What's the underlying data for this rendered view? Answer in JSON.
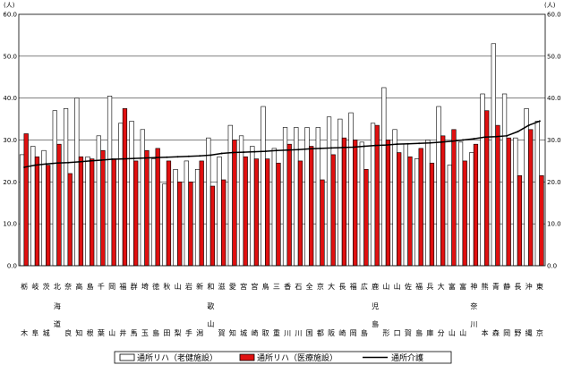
{
  "chart_data": {
    "type": "bar",
    "y_unit_left": "(人)",
    "y_unit_right": "(人)",
    "ylim": [
      0,
      60
    ],
    "yticks": [
      "0.0",
      "10.0",
      "20.0",
      "30.0",
      "40.0",
      "50.0",
      "60.0"
    ],
    "categories": [
      {
        "top": "栃",
        "mid": "",
        "mid2": "",
        "bot": "木"
      },
      {
        "top": "岐",
        "mid": "",
        "mid2": "",
        "bot": "阜"
      },
      {
        "top": "茨",
        "mid": "",
        "mid2": "",
        "bot": "城"
      },
      {
        "top": "北",
        "mid": "海",
        "mid2": "道",
        "bot": ""
      },
      {
        "top": "奈",
        "mid": "",
        "mid2": "",
        "bot": "良"
      },
      {
        "top": "高",
        "mid": "",
        "mid2": "",
        "bot": "知"
      },
      {
        "top": "島",
        "mid": "",
        "mid2": "",
        "bot": "根"
      },
      {
        "top": "千",
        "mid": "",
        "mid2": "",
        "bot": "葉"
      },
      {
        "top": "岡",
        "mid": "",
        "mid2": "",
        "bot": "山"
      },
      {
        "top": "福",
        "mid": "",
        "mid2": "",
        "bot": "井"
      },
      {
        "top": "群",
        "mid": "",
        "mid2": "",
        "bot": "馬"
      },
      {
        "top": "埼",
        "mid": "",
        "mid2": "",
        "bot": "玉"
      },
      {
        "top": "徳",
        "mid": "",
        "mid2": "",
        "bot": "島"
      },
      {
        "top": "秋",
        "mid": "",
        "mid2": "",
        "bot": "田"
      },
      {
        "top": "山",
        "mid": "",
        "mid2": "",
        "bot": "梨"
      },
      {
        "top": "岩",
        "mid": "",
        "mid2": "",
        "bot": "手"
      },
      {
        "top": "新",
        "mid": "",
        "mid2": "",
        "bot": "潟"
      },
      {
        "top": "和",
        "mid": "歌",
        "mid2": "山",
        "bot": ""
      },
      {
        "top": "滋",
        "mid": "",
        "mid2": "",
        "bot": "賀"
      },
      {
        "top": "愛",
        "mid": "",
        "mid2": "",
        "bot": "知"
      },
      {
        "top": "宮",
        "mid": "",
        "mid2": "",
        "bot": "城"
      },
      {
        "top": "宮",
        "mid": "",
        "mid2": "",
        "bot": "崎"
      },
      {
        "top": "鳥",
        "mid": "",
        "mid2": "",
        "bot": "取"
      },
      {
        "top": "三",
        "mid": "",
        "mid2": "",
        "bot": "重"
      },
      {
        "top": "香",
        "mid": "",
        "mid2": "",
        "bot": "川"
      },
      {
        "top": "石",
        "mid": "",
        "mid2": "",
        "bot": "川"
      },
      {
        "top": "全",
        "mid": "",
        "mid2": "",
        "bot": "国"
      },
      {
        "top": "京",
        "mid": "",
        "mid2": "",
        "bot": "都"
      },
      {
        "top": "大",
        "mid": "",
        "mid2": "",
        "bot": "阪"
      },
      {
        "top": "長",
        "mid": "",
        "mid2": "",
        "bot": "崎"
      },
      {
        "top": "福",
        "mid": "",
        "mid2": "",
        "bot": "岡"
      },
      {
        "top": "広",
        "mid": "",
        "mid2": "",
        "bot": "島"
      },
      {
        "top": "鹿",
        "mid": "児",
        "mid2": "島",
        "bot": ""
      },
      {
        "top": "山",
        "mid": "",
        "mid2": "",
        "bot": "形"
      },
      {
        "top": "山",
        "mid": "",
        "mid2": "",
        "bot": "口"
      },
      {
        "top": "佐",
        "mid": "",
        "mid2": "",
        "bot": "賀"
      },
      {
        "top": "福",
        "mid": "",
        "mid2": "",
        "bot": "島"
      },
      {
        "top": "兵",
        "mid": "",
        "mid2": "",
        "bot": "庫"
      },
      {
        "top": "大",
        "mid": "",
        "mid2": "",
        "bot": "分"
      },
      {
        "top": "富",
        "mid": "",
        "mid2": "",
        "bot": "山"
      },
      {
        "top": "富",
        "mid": "",
        "mid2": "",
        "bot": "山"
      },
      {
        "top": "神",
        "mid": "奈",
        "mid2": "川",
        "bot": ""
      },
      {
        "top": "熊",
        "mid": "",
        "mid2": "",
        "bot": "本"
      },
      {
        "top": "青",
        "mid": "",
        "mid2": "",
        "bot": "森"
      },
      {
        "top": "静",
        "mid": "",
        "mid2": "",
        "bot": "岡"
      },
      {
        "top": "長",
        "mid": "",
        "mid2": "",
        "bot": "野"
      },
      {
        "top": "沖",
        "mid": "",
        "mid2": "",
        "bot": "縄"
      },
      {
        "top": "東",
        "mid": "",
        "mid2": "",
        "bot": "京"
      }
    ],
    "series": [
      {
        "name": "通所リハ（老健施設）",
        "kind": "bar",
        "color": "#ffffff",
        "values": [
          26.5,
          28.5,
          27.5,
          37.0,
          37.5,
          40.0,
          26.0,
          31.0,
          40.5,
          34.0,
          34.5,
          32.5,
          25.5,
          19.5,
          23.0,
          25.0,
          23.0,
          30.5,
          26.0,
          33.5,
          31.0,
          28.5,
          38.0,
          28.0,
          33.0,
          33.0,
          33.0,
          33.0,
          35.5,
          35.0,
          36.5,
          29.5,
          34.0,
          42.5,
          32.5,
          29.0,
          25.5,
          30.0,
          38.0,
          24.0,
          29.5,
          27.0,
          41.0,
          53.0,
          41.0,
          30.5,
          37.5,
          34.5
        ]
      },
      {
        "name": "通所リハ（医療施設）",
        "kind": "bar",
        "color": "#e01010",
        "values": [
          31.5,
          26.0,
          24.0,
          29.0,
          22.0,
          26.0,
          25.5,
          27.5,
          25.5,
          37.5,
          25.0,
          27.5,
          28.0,
          25.0,
          20.0,
          20.0,
          25.0,
          19.0,
          20.5,
          30.0,
          26.0,
          25.5,
          25.5,
          24.5,
          29.0,
          25.0,
          28.5,
          20.5,
          26.5,
          30.5,
          30.0,
          23.0,
          33.5,
          30.0,
          27.0,
          26.0,
          28.0,
          24.5,
          31.0,
          32.5,
          25.0,
          29.0,
          37.0,
          33.5,
          30.5,
          21.5,
          32.5,
          21.5
        ]
      },
      {
        "name": "通所介護",
        "kind": "line",
        "color": "#000000",
        "values": [
          23.5,
          24.0,
          24.3,
          24.5,
          24.6,
          24.8,
          25.0,
          25.2,
          25.4,
          25.5,
          25.6,
          25.7,
          25.8,
          25.9,
          26.0,
          26.1,
          26.2,
          26.4,
          26.8,
          27.0,
          27.1,
          27.2,
          27.3,
          27.5,
          27.6,
          27.7,
          27.9,
          28.0,
          28.1,
          28.2,
          28.3,
          28.5,
          28.7,
          28.8,
          29.0,
          29.1,
          29.2,
          29.3,
          29.5,
          29.7,
          30.0,
          30.3,
          30.7,
          30.8,
          31.0,
          32.0,
          33.5,
          34.5
        ]
      }
    ],
    "legend": "bottom-right"
  }
}
